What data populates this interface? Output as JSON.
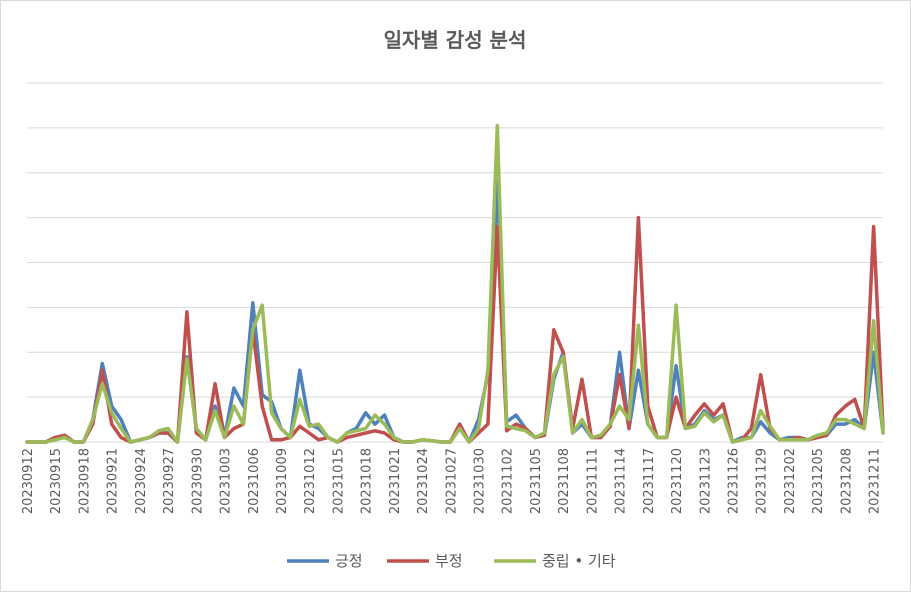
{
  "chart_data": {
    "type": "line",
    "title": "일자별 감성 분석",
    "xlabel": "",
    "ylabel": "",
    "ylim": [
      0,
      8
    ],
    "y_gridlines": [
      0,
      1,
      2,
      3,
      4,
      5,
      6,
      7,
      8
    ],
    "y_tick_labels_shown": false,
    "grid": "horizontal",
    "legend_position": "bottom",
    "x": [
      "20230912",
      "20230913",
      "20230914",
      "20230915",
      "20230916",
      "20230917",
      "20230918",
      "20230919",
      "20230920",
      "20230921",
      "20230922",
      "20230923",
      "20230924",
      "20230925",
      "20230926",
      "20230927",
      "20230928",
      "20230929",
      "20230930",
      "20231001",
      "20231002",
      "20231003",
      "20231004",
      "20231005",
      "20231006",
      "20231007",
      "20231008",
      "20231009",
      "20231010",
      "20231011",
      "20231012",
      "20231013",
      "20231014",
      "20231015",
      "20231016",
      "20231017",
      "20231018",
      "20231019",
      "20231020",
      "20231021",
      "20231022",
      "20231023",
      "20231024",
      "20231025",
      "20231026",
      "20231027",
      "20231028",
      "20231029",
      "20231030",
      "20231031",
      "20231101",
      "20231102",
      "20231103",
      "20231104",
      "20231105",
      "20231106",
      "20231107",
      "20231108",
      "20231109",
      "20231110",
      "20231111",
      "20231112",
      "20231113",
      "20231114",
      "20231115",
      "20231116",
      "20231117",
      "20231118",
      "20231119",
      "20231120",
      "20231121",
      "20231122",
      "20231123",
      "20231124",
      "20231125",
      "20231126",
      "20231127",
      "20231128",
      "20231129",
      "20231130",
      "20231201",
      "20231202",
      "20231203",
      "20231204",
      "20231205",
      "20231206",
      "20231207",
      "20231208",
      "20231209",
      "20231210",
      "20231211",
      "20231212"
    ],
    "x_tick_labels": [
      "20230912",
      "20230915",
      "20230918",
      "20230921",
      "20230924",
      "20230927",
      "20230930",
      "20231003",
      "20231006",
      "20231009",
      "20231012",
      "20231015",
      "20231018",
      "20231021",
      "20231024",
      "20231027",
      "20231030",
      "20231102",
      "20231105",
      "20231108",
      "20231111",
      "20231114",
      "20231117",
      "20231120",
      "20231123",
      "20231126",
      "20231129",
      "20231202",
      "20231205",
      "20231208",
      "20231211"
    ],
    "series": [
      {
        "name": "긍정",
        "color": "#4f81bd",
        "values": [
          0,
          0,
          0,
          0.1,
          0.15,
          0,
          0,
          0.5,
          1.75,
          0.8,
          0.5,
          0,
          0.05,
          0.1,
          0.2,
          0.2,
          0,
          1.9,
          0.3,
          0.05,
          0.8,
          0.1,
          1.2,
          0.8,
          3.1,
          1.05,
          0.9,
          0.3,
          0.1,
          1.6,
          0.4,
          0.3,
          0.1,
          0,
          0.2,
          0.3,
          0.65,
          0.4,
          0.6,
          0.1,
          0,
          0,
          0.05,
          0.03,
          0,
          0,
          0.3,
          0,
          0.5,
          1.5,
          5.8,
          0.45,
          0.6,
          0.3,
          0.1,
          0.15,
          1.4,
          2.0,
          0.2,
          0.4,
          0.1,
          0.1,
          0.35,
          2.0,
          0.3,
          1.6,
          0.4,
          0.1,
          0.1,
          1.7,
          0.3,
          0.4,
          0.7,
          0.5,
          0.6,
          0,
          0.1,
          0.1,
          0.45,
          0.2,
          0.05,
          0.1,
          0.1,
          0.05,
          0.1,
          0.15,
          0.4,
          0.4,
          0.5,
          0.3,
          2.0,
          0.2
        ]
      },
      {
        "name": "부정",
        "color": "#c0504d",
        "values": [
          0,
          0,
          0,
          0.1,
          0.15,
          0,
          0,
          0.4,
          1.6,
          0.4,
          0.1,
          0,
          0.05,
          0.1,
          0.2,
          0.2,
          0,
          2.9,
          0.2,
          0.05,
          1.3,
          0.1,
          0.3,
          0.4,
          2.5,
          0.8,
          0.05,
          0.05,
          0.1,
          0.35,
          0.2,
          0.05,
          0.1,
          0,
          0.1,
          0.15,
          0.2,
          0.25,
          0.2,
          0.05,
          0,
          0,
          0.05,
          0.03,
          0,
          0,
          0.4,
          0,
          0.2,
          0.4,
          4.8,
          0.25,
          0.4,
          0.3,
          0.1,
          0.15,
          2.5,
          2.0,
          0.3,
          1.4,
          0.1,
          0.1,
          0.35,
          1.5,
          0.3,
          5.0,
          0.8,
          0.1,
          0.1,
          1.0,
          0.3,
          0.6,
          0.85,
          0.6,
          0.85,
          0,
          0.05,
          0.3,
          1.5,
          0.3,
          0.05,
          0.05,
          0.1,
          0.05,
          0.1,
          0.15,
          0.6,
          0.8,
          0.95,
          0.3,
          4.8,
          0.3
        ]
      },
      {
        "name": "중립 • 기타",
        "color": "#9bbb59",
        "values": [
          0,
          0,
          0,
          0.05,
          0.1,
          0,
          0,
          0.5,
          1.3,
          0.65,
          0.3,
          0,
          0.05,
          0.1,
          0.25,
          0.3,
          0,
          1.85,
          0.3,
          0.05,
          0.7,
          0.1,
          0.8,
          0.4,
          2.5,
          3.05,
          0.65,
          0.3,
          0.1,
          0.95,
          0.35,
          0.4,
          0.1,
          0,
          0.2,
          0.25,
          0.3,
          0.6,
          0.4,
          0.1,
          0,
          0,
          0.05,
          0.03,
          0,
          0,
          0.3,
          0,
          0.3,
          1.6,
          7.05,
          0.35,
          0.3,
          0.25,
          0.1,
          0.2,
          1.5,
          1.9,
          0.2,
          0.5,
          0.1,
          0.15,
          0.4,
          0.8,
          0.5,
          2.6,
          0.4,
          0.1,
          0.1,
          3.05,
          0.3,
          0.35,
          0.65,
          0.45,
          0.6,
          0,
          0.05,
          0.1,
          0.7,
          0.35,
          0.05,
          0.05,
          0.05,
          0.05,
          0.15,
          0.2,
          0.5,
          0.5,
          0.4,
          0.3,
          2.7,
          0.2
        ]
      }
    ]
  }
}
